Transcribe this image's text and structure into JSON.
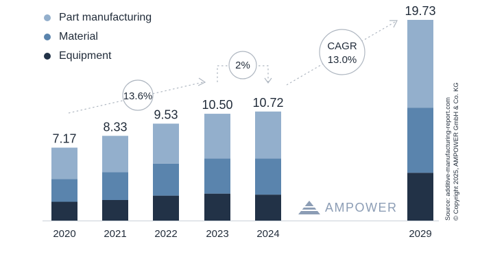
{
  "chart_data": {
    "type": "bar",
    "stacked": true,
    "categories": [
      "2020",
      "2021",
      "2022",
      "2023",
      "2024",
      "2029"
    ],
    "series": [
      {
        "name": "Equipment",
        "color": "#223247",
        "values": [
          1.85,
          2.02,
          2.45,
          2.65,
          2.55,
          4.7
        ]
      },
      {
        "name": "Material",
        "color": "#5a84ad",
        "values": [
          2.24,
          2.73,
          3.15,
          3.45,
          3.55,
          6.4
        ]
      },
      {
        "name": "Part manufacturing",
        "color": "#93afcc",
        "values": [
          3.08,
          3.58,
          3.93,
          4.4,
          4.62,
          8.63
        ]
      }
    ],
    "totals": [
      "7.17",
      "8.33",
      "9.53",
      "10.50",
      "10.72",
      "19.73"
    ],
    "annotations": {
      "growth_2020_2023": "13.6%",
      "growth_2023_2024": "2%",
      "cagr_label": "CAGR",
      "cagr_value": "13.0%"
    },
    "legend_position": "top-left",
    "grid": false
  },
  "source_lines": [
    "Source: additive-manufacturing-report.com",
    "© Copyright 2025, AMPOWER GmbH & Co. KG"
  ],
  "logo": {
    "text": "AMPOWER",
    "color": "#8c9db5"
  }
}
